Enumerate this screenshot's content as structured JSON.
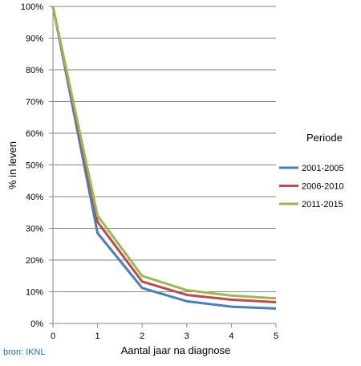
{
  "chart_data": {
    "type": "line",
    "x": [
      0,
      1,
      2,
      3,
      4,
      5
    ],
    "xlabel": "Aantal jaar na diagnose",
    "ylabel": "% in leven",
    "ylim": [
      0,
      100
    ],
    "yticks": [
      "0%",
      "10%",
      "20%",
      "30%",
      "40%",
      "50%",
      "60%",
      "70%",
      "80%",
      "90%",
      "100%"
    ],
    "xticks": [
      "0",
      "1",
      "2",
      "3",
      "4",
      "5"
    ],
    "grid": true,
    "legend_title": "Periode",
    "legend_position": "right",
    "series": [
      {
        "name": "2001-2005",
        "color": "#4a7ebb",
        "values": [
          100,
          28.5,
          11.2,
          7.0,
          5.3,
          4.7
        ]
      },
      {
        "name": "2006-2010",
        "color": "#be4b48",
        "values": [
          100,
          32.0,
          13.2,
          9.0,
          7.5,
          6.7
        ]
      },
      {
        "name": "2011-2015",
        "color": "#98b954",
        "values": [
          100,
          34.0,
          15.0,
          10.5,
          8.8,
          7.9
        ]
      }
    ]
  },
  "source_note": "bron: IKNL"
}
